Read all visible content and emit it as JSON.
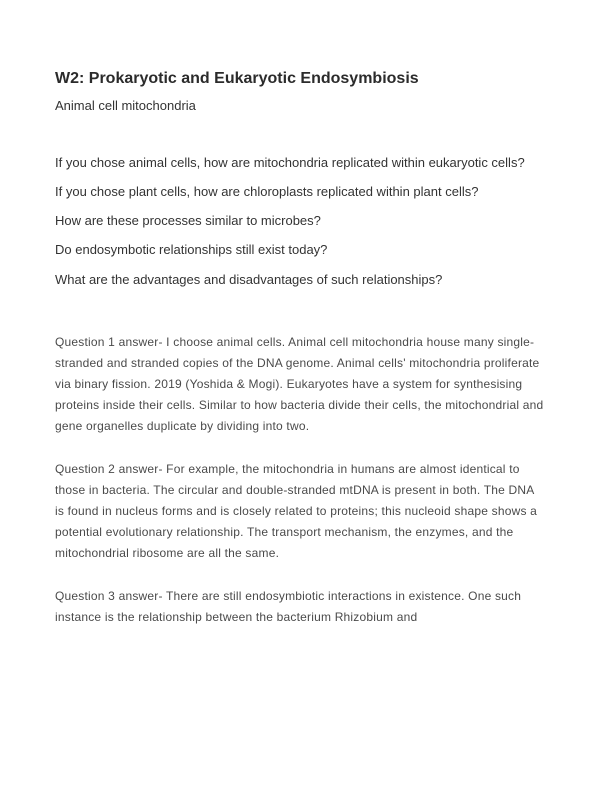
{
  "title": "W2: Prokaryotic and Eukaryotic Endosymbiosis",
  "subtitle": "Animal cell mitochondria",
  "questions": [
    "If you chose animal cells, how are mitochondria replicated within eukaryotic cells?",
    "If you chose plant cells, how are chloroplasts replicated within plant cells?",
    "How are these processes similar to microbes?",
    "Do endosymbotic relationships still exist today?",
    "What are the advantages and disadvantages of such relationships?"
  ],
  "answers": [
    "Question 1 answer- I choose animal cells. Animal cell mitochondria house many single-stranded and stranded copies of the DNA genome. Animal cells' mitochondria proliferate via binary fission. 2019 (Yoshida & Mogi). Eukaryotes have a system for synthesising proteins inside their cells. Similar to how bacteria divide their cells, the mitochondrial and gene organelles duplicate by dividing into two.",
    "Question 2 answer- For example, the mitochondria in humans are almost identical to those in bacteria. The circular and double-stranded mtDNA is present in both. The DNA is found in nucleus forms and is closely related to proteins; this nucleoid shape shows a potential evolutionary relationship. The transport mechanism, the enzymes, and the mitochondrial ribosome are all the same.",
    "Question 3 answer- There are still endosymbiotic interactions in existence. One such instance is the relationship between the bacterium Rhizobium and"
  ]
}
